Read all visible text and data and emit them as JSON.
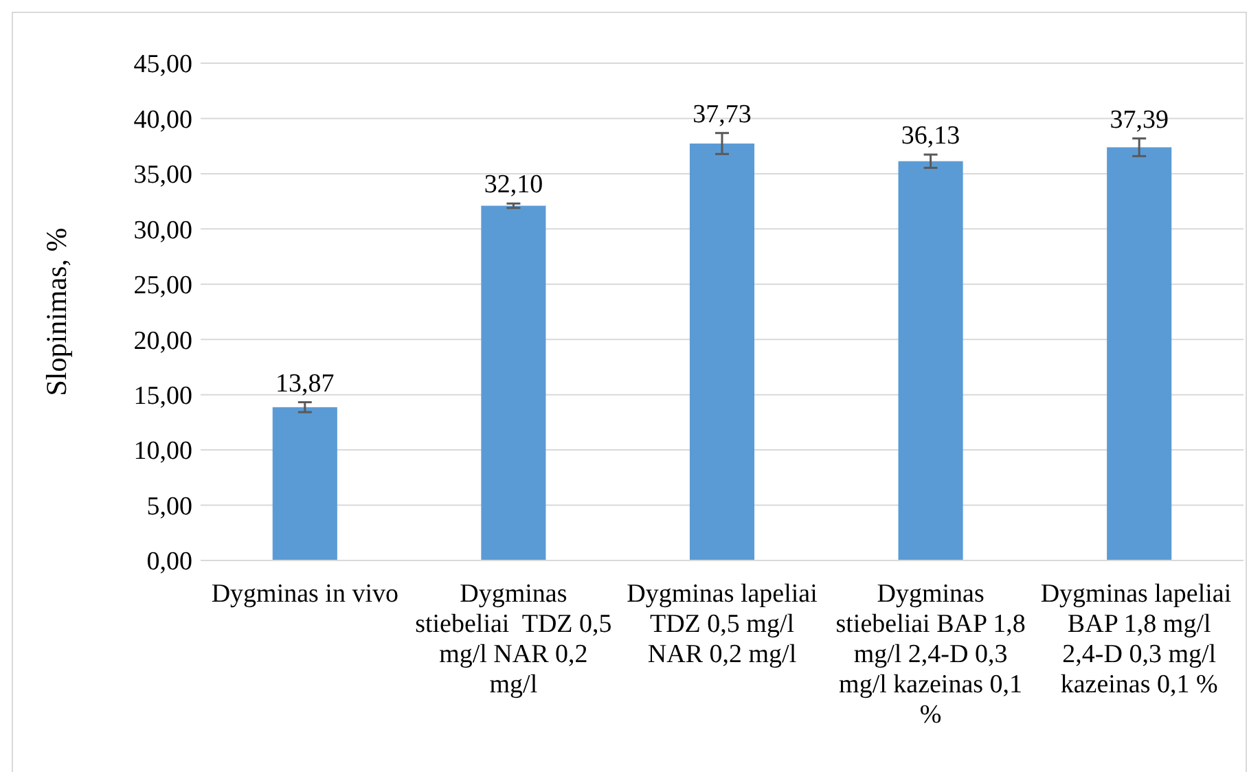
{
  "chart_data": {
    "type": "bar",
    "ylabel": "Slopinimas, %",
    "categories": [
      "Dygminas in vivo",
      "Dygminas stiebeliai  TDZ 0,5 mg/l NAR 0,2 mg/l",
      "Dygminas lapeliai TDZ 0,5 mg/l NAR 0,2 mg/l",
      "Dygminas stiebeliai BAP 1,8 mg/l 2,4-D 0,3 mg/l kazeinas 0,1 %",
      "Dygminas lapeliai  BAP 1,8 mg/l 2,4-D 0,3 mg/l kazeinas 0,1 %"
    ],
    "values": [
      13.87,
      32.1,
      37.73,
      36.13,
      37.39
    ],
    "value_labels": [
      "13,87",
      "32,10",
      "37,73",
      "36,13",
      "37,39"
    ],
    "errors": [
      0.45,
      0.2,
      0.95,
      0.6,
      0.8
    ],
    "color": "#5b9bd5",
    "ylim": [
      0,
      45
    ],
    "yticks": [
      {
        "value": 0,
        "label": "0,00"
      },
      {
        "value": 5,
        "label": "5,00"
      },
      {
        "value": 10,
        "label": "10,00"
      },
      {
        "value": 15,
        "label": "15,00"
      },
      {
        "value": 20,
        "label": "20,00"
      },
      {
        "value": 25,
        "label": "25,00"
      },
      {
        "value": 30,
        "label": "30,00"
      },
      {
        "value": 35,
        "label": "35,00"
      },
      {
        "value": 40,
        "label": "40,00"
      },
      {
        "value": 45,
        "label": "45,00"
      }
    ],
    "grid": "y"
  }
}
